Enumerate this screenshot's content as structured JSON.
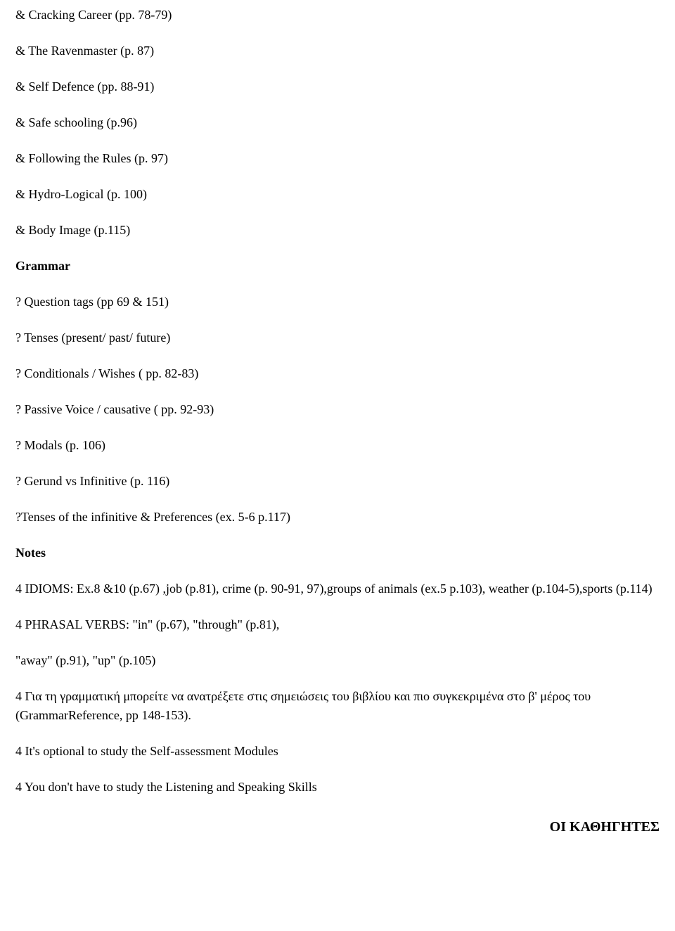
{
  "reading_items": [
    "& Cracking Career (pp. 78-79)",
    "& The Ravenmaster (p. 87)",
    "&  Self Defence (pp. 88-91)",
    "& Safe schooling (p.96)",
    "& Following the Rules (p. 97)",
    "& Hydro-Logical (p. 100)",
    "&  Body Image (p.115)"
  ],
  "grammar_heading": "Grammar",
  "grammar_items": [
    "? Question tags (pp 69 & 151)",
    "? Tenses (present/ past/ future)",
    "? Conditionals / Wishes ( pp. 82-83)",
    "? Passive Voice / causative ( pp. 92-93)",
    "? Modals (p. 106)",
    "? Gerund vs Infinitive (p. 116)",
    "?Tenses of the infinitive & Preferences (ex. 5-6 p.117)"
  ],
  "notes_heading": "Notes",
  "notes_items": [
    "4 IDIOMS:  Ex.8 &10 (p.67) ,job (p.81), crime (p. 90-91, 97),groups of animals (ex.5 p.103), weather (p.104-5),sports (p.114)",
    "4 PHRASAL VERBS: \"in\" (p.67), \"through\" (p.81),",
    "\"away\" (p.91), \"up\" (p.105)",
    "4 Για τη γραμματική μπορείτε να ανατρέξετε στις σημειώσεις του βιβλίου και πιο συγκεκριμένα στο β' μέρος του (GrammarReference, pp 148-153).",
    "4 It's optional to study the Self-assessment Modules",
    "4 You don't have to study the Listening and Speaking Skills"
  ],
  "footer": "ΟΙ ΚΑΘΗΓΗΤΕΣ",
  "colors": {
    "background": "#ffffff",
    "text": "#000000"
  },
  "typography": {
    "body_fontsize": 18,
    "heading_fontsize": 18,
    "footer_fontsize": 20,
    "font_family": "Georgia"
  }
}
